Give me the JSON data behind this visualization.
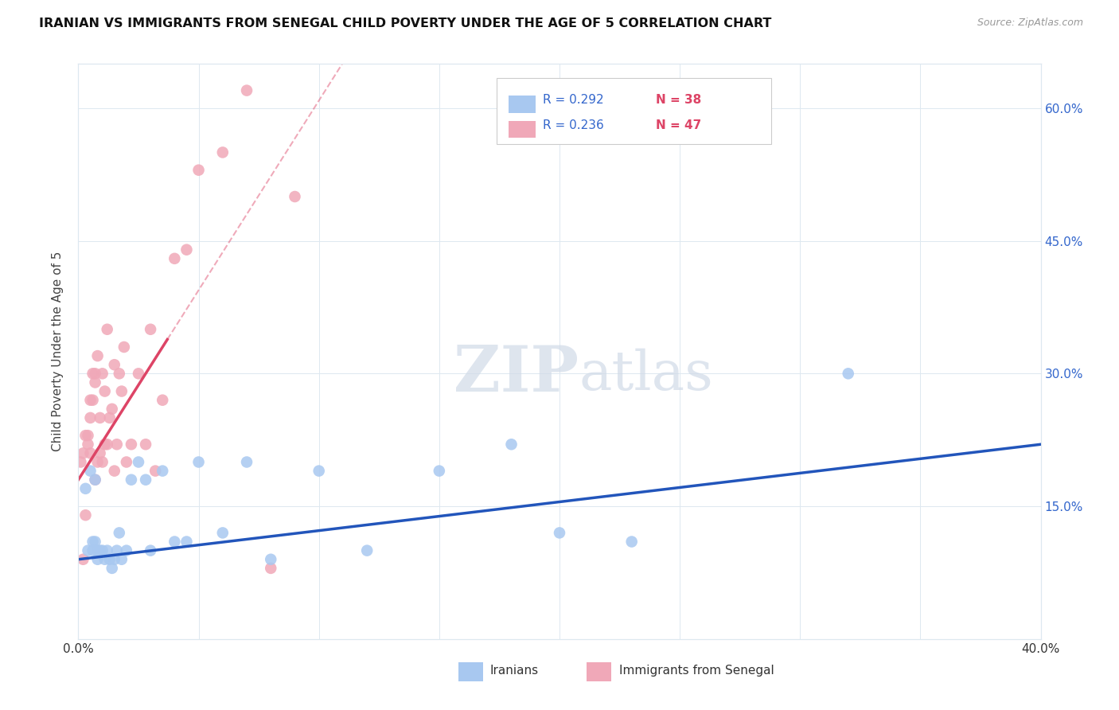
{
  "title": "IRANIAN VS IMMIGRANTS FROM SENEGAL CHILD POVERTY UNDER THE AGE OF 5 CORRELATION CHART",
  "source": "Source: ZipAtlas.com",
  "ylabel": "Child Poverty Under the Age of 5",
  "ytick_values": [
    0.0,
    0.15,
    0.3,
    0.45,
    0.6
  ],
  "xtick_values": [
    0.0,
    0.05,
    0.1,
    0.15,
    0.2,
    0.25,
    0.3,
    0.35,
    0.4
  ],
  "xlim": [
    0.0,
    0.4
  ],
  "ylim": [
    0.0,
    0.65
  ],
  "R_iranians": "0.292",
  "N_iranians": "38",
  "R_senegal": "0.236",
  "N_senegal": "47",
  "iranians_color": "#a8c8f0",
  "senegal_color": "#f0a8b8",
  "trendline_iranians_color": "#2255bb",
  "trendline_senegal_color": "#dd4466",
  "watermark_zip": "ZIP",
  "watermark_atlas": "atlas",
  "grid_color": "#dde8f0",
  "background_color": "#ffffff",
  "iranians_x": [
    0.003,
    0.004,
    0.005,
    0.006,
    0.006,
    0.007,
    0.007,
    0.008,
    0.008,
    0.009,
    0.01,
    0.011,
    0.012,
    0.013,
    0.014,
    0.015,
    0.016,
    0.017,
    0.018,
    0.02,
    0.022,
    0.025,
    0.028,
    0.03,
    0.035,
    0.04,
    0.045,
    0.05,
    0.06,
    0.07,
    0.08,
    0.1,
    0.12,
    0.15,
    0.18,
    0.2,
    0.23,
    0.32
  ],
  "iranians_y": [
    0.17,
    0.1,
    0.19,
    0.11,
    0.1,
    0.18,
    0.11,
    0.1,
    0.09,
    0.1,
    0.1,
    0.09,
    0.1,
    0.09,
    0.08,
    0.09,
    0.1,
    0.12,
    0.09,
    0.1,
    0.18,
    0.2,
    0.18,
    0.1,
    0.19,
    0.11,
    0.11,
    0.2,
    0.12,
    0.2,
    0.09,
    0.19,
    0.1,
    0.19,
    0.22,
    0.12,
    0.11,
    0.3
  ],
  "senegal_x": [
    0.001,
    0.002,
    0.002,
    0.003,
    0.003,
    0.004,
    0.004,
    0.005,
    0.005,
    0.005,
    0.006,
    0.006,
    0.007,
    0.007,
    0.007,
    0.008,
    0.008,
    0.009,
    0.009,
    0.01,
    0.01,
    0.011,
    0.011,
    0.012,
    0.012,
    0.013,
    0.014,
    0.015,
    0.015,
    0.016,
    0.017,
    0.018,
    0.019,
    0.02,
    0.022,
    0.025,
    0.028,
    0.03,
    0.032,
    0.035,
    0.04,
    0.045,
    0.05,
    0.06,
    0.07,
    0.08,
    0.09
  ],
  "senegal_y": [
    0.2,
    0.09,
    0.21,
    0.14,
    0.23,
    0.23,
    0.22,
    0.21,
    0.25,
    0.27,
    0.27,
    0.3,
    0.18,
    0.29,
    0.3,
    0.2,
    0.32,
    0.21,
    0.25,
    0.2,
    0.3,
    0.22,
    0.28,
    0.22,
    0.35,
    0.25,
    0.26,
    0.19,
    0.31,
    0.22,
    0.3,
    0.28,
    0.33,
    0.2,
    0.22,
    0.3,
    0.22,
    0.35,
    0.19,
    0.27,
    0.43,
    0.44,
    0.53,
    0.55,
    0.62,
    0.08,
    0.5
  ]
}
